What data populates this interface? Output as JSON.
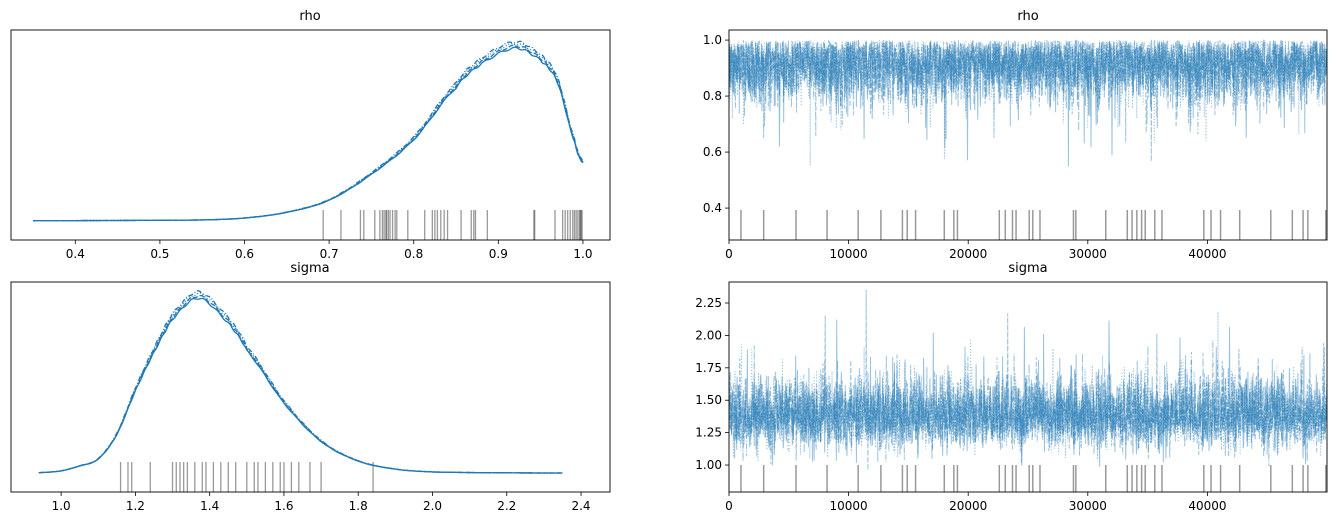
{
  "colors": {
    "series": "#1f77b4",
    "rug": "#000000",
    "axes": "#000000"
  },
  "chart_data": [
    {
      "type": "line",
      "kind": "density",
      "title": "rho",
      "xlabel": "",
      "ylabel": "",
      "xlim": [
        0.324,
        1.032
      ],
      "xticks": [
        "0.4",
        "0.5",
        "0.6",
        "0.7",
        "0.8",
        "0.9",
        "1.0"
      ],
      "yticks": [],
      "line_styles": [
        "solid",
        "dashed",
        "dotted",
        "dashdot"
      ],
      "x": [
        0.35,
        0.45,
        0.55,
        0.6,
        0.65,
        0.7,
        0.75,
        0.8,
        0.85,
        0.88,
        0.92,
        0.95,
        0.97,
        0.99,
        1.0
      ],
      "relative_density": [
        0.002,
        0.003,
        0.006,
        0.017,
        0.05,
        0.12,
        0.27,
        0.47,
        0.77,
        0.91,
        1.0,
        0.93,
        0.8,
        0.46,
        0.335
      ],
      "rug": [
        0.693,
        0.714,
        0.737,
        0.741,
        0.754,
        0.76,
        0.763,
        0.765,
        0.767,
        0.768,
        0.77,
        0.772,
        0.775,
        0.778,
        0.78,
        0.793,
        0.813,
        0.822,
        0.825,
        0.828,
        0.832,
        0.836,
        0.84,
        0.856,
        0.868,
        0.871,
        0.873,
        0.887,
        0.942,
        0.943,
        0.967,
        0.976,
        0.979,
        0.982,
        0.985,
        0.988,
        0.99,
        0.992,
        0.994,
        0.996,
        0.997,
        0.998,
        0.999
      ]
    },
    {
      "type": "line",
      "kind": "trace",
      "title": "rho",
      "xlabel": "",
      "ylabel": "",
      "xlim": [
        0,
        49999
      ],
      "ylim": [
        0.286,
        1.036
      ],
      "xticks": [
        "0",
        "10000",
        "20000",
        "30000",
        "40000"
      ],
      "yticks": [
        "0.4",
        "0.6",
        "0.8",
        "1.0"
      ],
      "chains": 4,
      "draws": 50000,
      "mode": 0.92,
      "upper_bound": 1.0,
      "observed_min": 0.37,
      "rug": [
        1000,
        2900,
        5600,
        8200,
        10800,
        12700,
        14500,
        14900,
        15600,
        18000,
        18800,
        19100,
        22600,
        23100,
        23700,
        24000,
        25100,
        25400,
        26000,
        28800,
        29000,
        31500,
        33300,
        33700,
        34100,
        34500,
        34800,
        35600,
        36200,
        39700,
        40300,
        41100,
        42700,
        45300,
        47100,
        48000,
        48400,
        49900
      ]
    },
    {
      "type": "line",
      "kind": "density",
      "title": "sigma",
      "xlabel": "",
      "ylabel": "",
      "xlim": [
        0.865,
        2.478
      ],
      "xticks": [
        "1.0",
        "1.2",
        "1.4",
        "1.6",
        "1.8",
        "2.0",
        "2.2",
        "2.4"
      ],
      "yticks": [],
      "line_styles": [
        "solid",
        "dashed",
        "dotted",
        "dashdot"
      ],
      "x": [
        0.94,
        1.0,
        1.05,
        1.1,
        1.15,
        1.2,
        1.25,
        1.3,
        1.37,
        1.45,
        1.5,
        1.6,
        1.7,
        1.8,
        1.9,
        2.0,
        2.2,
        2.35
      ],
      "relative_density": [
        0.002,
        0.012,
        0.04,
        0.08,
        0.22,
        0.47,
        0.69,
        0.88,
        1.0,
        0.86,
        0.7,
        0.4,
        0.18,
        0.068,
        0.022,
        0.006,
        0.001,
        0.0
      ],
      "rug": [
        1.16,
        1.18,
        1.19,
        1.24,
        1.3,
        1.31,
        1.32,
        1.33,
        1.34,
        1.36,
        1.38,
        1.39,
        1.41,
        1.43,
        1.45,
        1.47,
        1.5,
        1.52,
        1.53,
        1.55,
        1.57,
        1.59,
        1.6,
        1.62,
        1.64,
        1.67,
        1.7,
        1.84
      ]
    },
    {
      "type": "line",
      "kind": "trace",
      "title": "sigma",
      "xlabel": "",
      "ylabel": "",
      "xlim": [
        0,
        49999
      ],
      "ylim": [
        0.792,
        2.412
      ],
      "xticks": [
        "0",
        "10000",
        "20000",
        "30000",
        "40000"
      ],
      "yticks": [
        "1.00",
        "1.25",
        "1.50",
        "1.75",
        "2.00",
        "2.25"
      ],
      "chains": 4,
      "draws": 50000,
      "mode": 1.37,
      "observed_max": 2.35,
      "rug": [
        1000,
        2900,
        5600,
        8200,
        10800,
        12700,
        14500,
        14900,
        15600,
        18000,
        18800,
        19100,
        22600,
        23100,
        23700,
        24000,
        25100,
        25400,
        26000,
        28800,
        29000,
        31500,
        33300,
        33700,
        34100,
        34500,
        34800,
        35600,
        36200,
        39700,
        40300,
        41100,
        42700,
        45300,
        47100,
        48000,
        48400,
        49900
      ]
    }
  ]
}
